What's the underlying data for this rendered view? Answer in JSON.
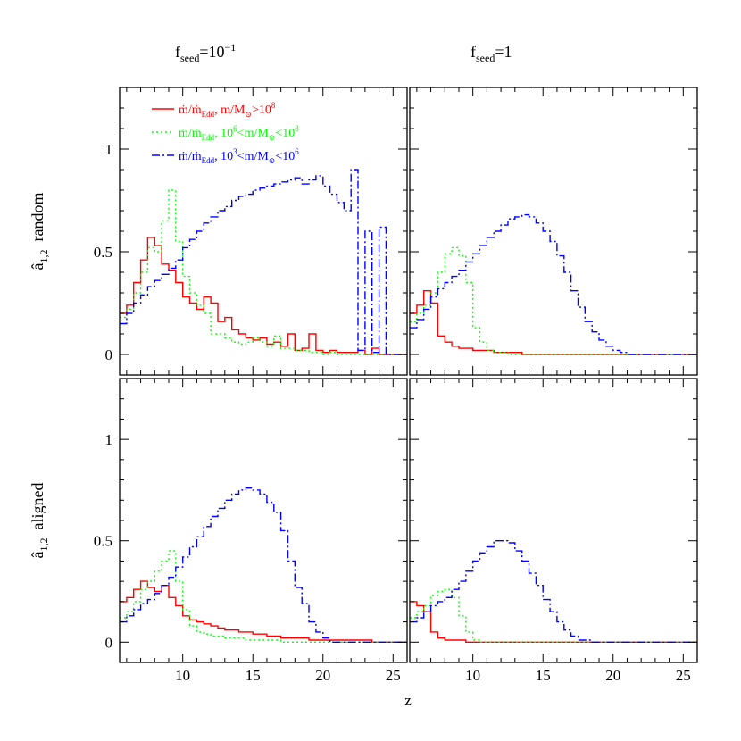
{
  "figure": {
    "column_titles": [
      {
        "f": "f",
        "sub": "seed",
        "eq": "=",
        "val": "10",
        "sup": "−1"
      },
      {
        "f": "f",
        "sub": "seed",
        "eq": "=",
        "val": "1",
        "sup": ""
      }
    ],
    "row_labels": [
      {
        "hat": "â",
        "sub": "1,2",
        "word": "random"
      },
      {
        "hat": "â",
        "sub": "1,2",
        "word": "aligned"
      }
    ],
    "xlabel": "z"
  },
  "legend": [
    {
      "name": "ṁ/ṁ_Edd, m/M⊙>10^8",
      "pre": "ṁ/ṁ",
      "presub": "Edd",
      "mid": ", m/M",
      "midsub": "⊙",
      "post": ">10",
      "postsup": "8",
      "color": "#ff0000",
      "dash": "solid"
    },
    {
      "name": "ṁ/ṁ_Edd, 10^6<m/M⊙<10^8",
      "pre": "ṁ/ṁ",
      "presub": "Edd",
      "mid": ", 10",
      "midsup": "6",
      "mid2": "<m/M",
      "midsub": "⊙",
      "post": "<10",
      "postsup": "8",
      "color": "#00ff00",
      "dash": "dotted"
    },
    {
      "name": "ṁ/ṁ_Edd, 10^3<m/M⊙<10^6",
      "pre": "ṁ/ṁ",
      "presub": "Edd",
      "mid": ", 10",
      "midsup": "3",
      "mid2": "<m/M",
      "midsub": "⊙",
      "post": "<10",
      "postsup": "6",
      "color": "#0000ff",
      "dash": "dashdot"
    }
  ],
  "chart_data": {
    "type": "line",
    "step": true,
    "xlim": [
      5.5,
      26
    ],
    "ylim": [
      -0.1,
      1.3
    ],
    "xticks": [
      10,
      15,
      20,
      25
    ],
    "yticks": [
      0,
      0.5,
      1
    ],
    "ytick_labels": [
      "0",
      "0.5",
      "1"
    ],
    "xtick_labels": [
      "10",
      "15",
      "20",
      "25"
    ],
    "bin_start": 5.5,
    "bin_width": 0.5,
    "panels": [
      {
        "id": "random-fseed-0.1",
        "series": [
          {
            "color": "#ff0000",
            "dash": "solid",
            "values": [
              0.2,
              0.24,
              0.35,
              0.46,
              0.57,
              0.53,
              0.44,
              0.41,
              0.35,
              0.28,
              0.25,
              0.22,
              0.28,
              0.25,
              0.16,
              0.18,
              0.12,
              0.1,
              0.08,
              0.07,
              0.08,
              0.05,
              0.06,
              0.04,
              0.1,
              0.02,
              0.03,
              0.1,
              0.02,
              0.01,
              0.02,
              0.01,
              0.01,
              0.01,
              0.02,
              0.0,
              0.03,
              0.0,
              0.0,
              0.0,
              0.0
            ]
          },
          {
            "color": "#00ff00",
            "dash": "dotted",
            "values": [
              0.18,
              0.22,
              0.3,
              0.4,
              0.52,
              0.5,
              0.65,
              0.8,
              0.55,
              0.38,
              0.3,
              0.24,
              0.2,
              0.1,
              0.1,
              0.08,
              0.06,
              0.05,
              0.06,
              0.08,
              0.06,
              0.04,
              0.09,
              0.03,
              0.03,
              0.02,
              0.02,
              0.01,
              0.01,
              0.0,
              0.01,
              0.0,
              0.0,
              0.0,
              0.0,
              0.0,
              0.0,
              0.0,
              0.0,
              0.0,
              0.0
            ]
          },
          {
            "color": "#0000ff",
            "dash": "dashdot",
            "values": [
              0.15,
              0.2,
              0.25,
              0.29,
              0.33,
              0.36,
              0.39,
              0.42,
              0.46,
              0.52,
              0.56,
              0.6,
              0.64,
              0.67,
              0.7,
              0.72,
              0.75,
              0.77,
              0.78,
              0.8,
              0.81,
              0.82,
              0.83,
              0.84,
              0.85,
              0.86,
              0.83,
              0.85,
              0.87,
              0.82,
              0.78,
              0.74,
              0.7,
              0.9,
              0.02,
              0.6,
              0.01,
              0.62,
              0.0,
              0.0,
              0.0
            ]
          }
        ]
      },
      {
        "id": "random-fseed-1",
        "series": [
          {
            "color": "#ff0000",
            "dash": "solid",
            "values": [
              0.2,
              0.24,
              0.31,
              0.25,
              0.09,
              0.06,
              0.04,
              0.03,
              0.03,
              0.02,
              0.02,
              0.02,
              0.01,
              0.01,
              0.01,
              0.01,
              0.0,
              0.0,
              0.0,
              0.0,
              0.0,
              0.0,
              0.0,
              0.0,
              0.0,
              0.0,
              0.0,
              0.0,
              0.0,
              0.0,
              0.0,
              0.0,
              0.0,
              0.0,
              0.0,
              0.0,
              0.0,
              0.0,
              0.0,
              0.0,
              0.0
            ]
          },
          {
            "color": "#00ff00",
            "dash": "dotted",
            "values": [
              0.16,
              0.2,
              0.24,
              0.3,
              0.4,
              0.49,
              0.52,
              0.48,
              0.35,
              0.13,
              0.06,
              0.02,
              0.01,
              0.01,
              0.0,
              0.0,
              0.0,
              0.0,
              0.0,
              0.0,
              0.0,
              0.0,
              0.0,
              0.0,
              0.0,
              0.0,
              0.0,
              0.0,
              0.0,
              0.0,
              0.0,
              0.0,
              0.0,
              0.0,
              0.0,
              0.0,
              0.0,
              0.0,
              0.0,
              0.0,
              0.0
            ]
          },
          {
            "color": "#0000ff",
            "dash": "dashdot",
            "values": [
              0.13,
              0.17,
              0.22,
              0.28,
              0.32,
              0.35,
              0.38,
              0.41,
              0.45,
              0.49,
              0.53,
              0.57,
              0.6,
              0.63,
              0.66,
              0.67,
              0.68,
              0.67,
              0.64,
              0.6,
              0.55,
              0.48,
              0.4,
              0.31,
              0.23,
              0.16,
              0.11,
              0.07,
              0.04,
              0.02,
              0.01,
              0.0,
              0.0,
              0.0,
              0.0,
              0.0,
              0.0,
              0.0,
              0.0,
              0.0,
              0.0
            ]
          }
        ]
      },
      {
        "id": "aligned-fseed-0.1",
        "series": [
          {
            "color": "#ff0000",
            "dash": "solid",
            "values": [
              0.2,
              0.22,
              0.26,
              0.3,
              0.27,
              0.25,
              0.28,
              0.22,
              0.18,
              0.13,
              0.11,
              0.1,
              0.09,
              0.08,
              0.07,
              0.06,
              0.06,
              0.05,
              0.05,
              0.04,
              0.04,
              0.03,
              0.03,
              0.02,
              0.02,
              0.02,
              0.02,
              0.01,
              0.01,
              0.01,
              0.01,
              0.01,
              0.01,
              0.01,
              0.01,
              0.01,
              0.0,
              0.0,
              0.0,
              0.0,
              0.0
            ]
          },
          {
            "color": "#00ff00",
            "dash": "dotted",
            "values": [
              0.12,
              0.15,
              0.2,
              0.26,
              0.3,
              0.35,
              0.4,
              0.45,
              0.3,
              0.16,
              0.08,
              0.05,
              0.04,
              0.03,
              0.03,
              0.02,
              0.02,
              0.02,
              0.01,
              0.01,
              0.01,
              0.01,
              0.01,
              0.0,
              0.0,
              0.0,
              0.0,
              0.0,
              0.0,
              0.0,
              0.0,
              0.0,
              0.0,
              0.0,
              0.0,
              0.0,
              0.0,
              0.0,
              0.0,
              0.0,
              0.0
            ]
          },
          {
            "color": "#0000ff",
            "dash": "dashdot",
            "values": [
              0.1,
              0.13,
              0.16,
              0.19,
              0.21,
              0.24,
              0.28,
              0.32,
              0.37,
              0.42,
              0.47,
              0.52,
              0.57,
              0.62,
              0.66,
              0.7,
              0.73,
              0.75,
              0.76,
              0.75,
              0.73,
              0.69,
              0.64,
              0.55,
              0.4,
              0.27,
              0.19,
              0.1,
              0.05,
              0.02,
              0.0,
              0.0,
              0.0,
              0.0,
              0.0,
              0.0,
              0.0,
              0.0,
              0.0,
              0.0,
              0.0
            ]
          }
        ]
      },
      {
        "id": "aligned-fseed-1",
        "series": [
          {
            "color": "#ff0000",
            "dash": "solid",
            "values": [
              0.2,
              0.18,
              0.15,
              0.05,
              0.02,
              0.01,
              0.01,
              0.01,
              0.0,
              0.0,
              0.0,
              0.0,
              0.0,
              0.0,
              0.0,
              0.0,
              0.0,
              0.0,
              0.0,
              0.0,
              0.0,
              0.0,
              0.0,
              0.0,
              0.0,
              0.0,
              0.0,
              0.0,
              0.0,
              0.0,
              0.0,
              0.0,
              0.0,
              0.0,
              0.0,
              0.0,
              0.0,
              0.0,
              0.0,
              0.0,
              0.0
            ]
          },
          {
            "color": "#00ff00",
            "dash": "dotted",
            "values": [
              0.12,
              0.15,
              0.18,
              0.23,
              0.25,
              0.26,
              0.22,
              0.13,
              0.05,
              0.01,
              0.0,
              0.0,
              0.0,
              0.0,
              0.0,
              0.0,
              0.0,
              0.0,
              0.0,
              0.0,
              0.0,
              0.0,
              0.0,
              0.0,
              0.0,
              0.0,
              0.0,
              0.0,
              0.0,
              0.0,
              0.0,
              0.0,
              0.0,
              0.0,
              0.0,
              0.0,
              0.0,
              0.0,
              0.0,
              0.0,
              0.0
            ]
          },
          {
            "color": "#0000ff",
            "dash": "dashdot",
            "values": [
              0.1,
              0.12,
              0.15,
              0.18,
              0.2,
              0.22,
              0.26,
              0.3,
              0.35,
              0.4,
              0.44,
              0.47,
              0.5,
              0.5,
              0.49,
              0.45,
              0.4,
              0.34,
              0.28,
              0.21,
              0.15,
              0.1,
              0.06,
              0.03,
              0.01,
              0.01,
              0.0,
              0.0,
              0.0,
              0.0,
              0.0,
              0.0,
              0.0,
              0.0,
              0.0,
              0.0,
              0.0,
              0.0,
              0.0,
              0.0,
              0.0
            ]
          }
        ]
      }
    ]
  }
}
